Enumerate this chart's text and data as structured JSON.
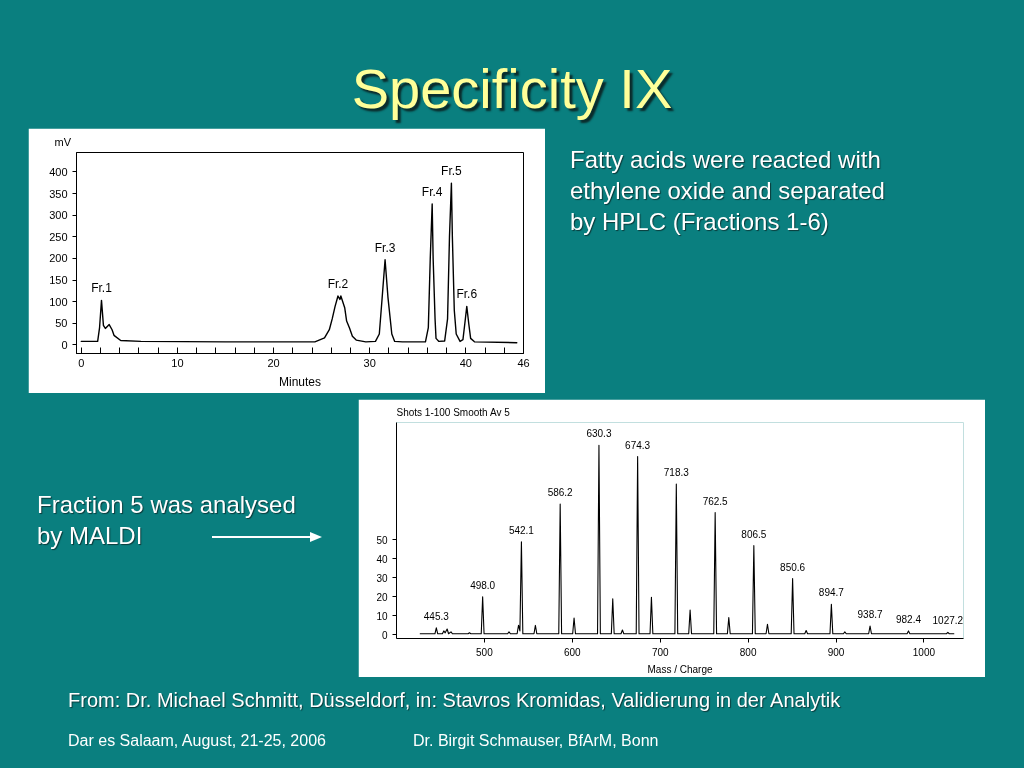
{
  "chart_data": [
    {
      "type": "line",
      "title": "Specificity IX",
      "xlabel": "Minutes",
      "ylabel": "mV",
      "x": [
        0,
        1.7,
        1.9,
        2.1,
        2.3,
        2.5,
        2.9,
        3.2,
        3.4,
        4.1,
        6.2,
        15,
        24.3,
        25.3,
        25.8,
        26.1,
        26.4,
        26.7,
        26.9,
        27.0,
        27.4,
        27.6,
        27.9,
        28.2,
        28.6,
        29.6,
        30.6,
        31.0,
        31.3,
        31.6,
        31.9,
        32.3,
        32.6,
        33.4,
        35.8,
        36.1,
        36.3,
        36.5,
        36.6,
        36.8,
        36.9,
        37.2,
        37.8,
        38.1,
        38.3,
        38.5,
        38.6,
        38.8,
        39.0,
        39.4,
        39.7,
        39.9,
        40.1,
        40.3,
        40.5,
        40.9,
        45.3
      ],
      "series": [
        {
          "color": "#000000",
          "values": [
            8,
            8,
            40,
            103,
            45,
            38,
            47,
            35,
            22,
            10,
            8,
            7,
            7,
            16,
            35,
            60,
            89,
            113,
            105,
            113,
            86,
            55,
            39,
            20,
            11,
            7,
            8,
            25,
            110,
            197,
            110,
            25,
            8,
            7,
            7,
            40,
            200,
            326,
            200,
            60,
            15,
            8,
            9,
            60,
            250,
            374,
            250,
            80,
            25,
            8,
            12,
            50,
            89,
            50,
            15,
            7,
            5
          ]
        }
      ],
      "xlim": [
        -0.5,
        46
      ],
      "ylim": [
        -20,
        445
      ],
      "xticks": [
        0,
        {
          "value": 2,
          "label": null
        },
        {
          "value": 4,
          "label": null
        },
        {
          "value": 6,
          "label": null
        },
        {
          "value": 8,
          "label": null
        },
        10,
        {
          "value": 12,
          "label": null
        },
        {
          "value": 14,
          "label": null
        },
        {
          "value": 16,
          "label": null
        },
        {
          "value": 18,
          "label": null
        },
        20,
        {
          "value": 22,
          "label": null
        },
        {
          "value": 24,
          "label": null
        },
        {
          "value": 26,
          "label": null
        },
        {
          "value": 28,
          "label": null
        },
        30,
        {
          "value": 32,
          "label": null
        },
        {
          "value": 34,
          "label": null
        },
        {
          "value": 36,
          "label": null
        },
        {
          "value": 38,
          "label": null
        },
        40,
        {
          "value": 42,
          "label": null
        },
        {
          "value": 44,
          "label": null
        },
        46
      ],
      "yticks": [
        0,
        50,
        100,
        150,
        200,
        250,
        300,
        350,
        400
      ],
      "annotations": [
        "Fatty acids were reacted with ethylene oxide and separated by HPLC (Fractions 1-6)",
        {
          "text": "Fr.1",
          "x": 2.1,
          "y": 103
        },
        {
          "text": "Fr.2",
          "x": 26.7,
          "y": 113
        },
        {
          "text": "Fr.3",
          "x": 31.6,
          "y": 197
        },
        {
          "text": "Fr.4",
          "x": 36.5,
          "y": 326
        },
        {
          "text": "Fr.5",
          "x": 38.5,
          "y": 374
        },
        {
          "text": "Fr.6",
          "x": 40.1,
          "y": 89
        }
      ]
    },
    {
      "type": "line",
      "title": "Shots 1-100 Smooth Av 5",
      "xlabel": "Mass / Charge",
      "x": [
        427,
        443.7,
        445.3,
        446.9,
        452.2,
        453.8,
        455.4,
        457.6,
        459.2,
        462,
        463.6,
        481.4,
        483,
        484.6,
        496.4,
        498,
        499.6,
        526.4,
        528,
        529.6,
        537.2,
        538.8,
        540.4,
        542.1,
        543.7,
        556.4,
        558,
        559.6,
        584.6,
        586.2,
        587.8,
        600.4,
        602,
        603.6,
        628.7,
        630.3,
        631.9,
        644.4,
        646,
        647.6,
        655.4,
        657,
        658.6,
        672.7,
        674.3,
        675.9,
        688.4,
        690,
        691.6,
        716.7,
        718.3,
        719.9,
        732.4,
        734,
        735.6,
        760.9,
        762.5,
        764.1,
        776.4,
        778,
        779.6,
        804.9,
        806.5,
        808.1,
        820.4,
        822,
        823.6,
        849,
        850.6,
        852.2,
        864.4,
        866,
        867.6,
        893.1,
        894.7,
        896.3,
        908.4,
        910,
        911.6,
        937.1,
        938.7,
        940.3,
        980.8,
        982.4,
        984,
        1025.6,
        1027.2,
        1028.8,
        1034
      ],
      "series": [
        {
          "color": "#000000",
          "values": [
            0.5,
            0.5,
            3.6,
            0.5,
            0.5,
            2,
            1,
            3,
            0.5,
            1.5,
            0.5,
            0.5,
            1,
            0.5,
            0.5,
            20,
            0.5,
            0.5,
            1.5,
            0.5,
            0.5,
            5,
            2,
            49,
            0.5,
            0.5,
            4.9,
            0.5,
            0.5,
            69,
            0.5,
            0.5,
            8.8,
            0.5,
            0.5,
            100,
            0.5,
            0.5,
            19,
            0.5,
            0.5,
            2.5,
            0.5,
            0.5,
            94,
            0.5,
            0.5,
            19.7,
            0.5,
            0.5,
            79.5,
            0.5,
            0.5,
            13,
            0.5,
            0.5,
            64.5,
            0.5,
            0.5,
            9,
            0.5,
            0.5,
            47,
            0.5,
            0.5,
            5.5,
            0.5,
            0.5,
            29.6,
            0.5,
            0.5,
            2.2,
            0.5,
            0.5,
            16,
            0.5,
            0.5,
            1.5,
            0.5,
            0.5,
            4.6,
            0.5,
            0.5,
            2,
            0.5,
            0.5,
            1.2,
            0.5,
            0.5
          ]
        }
      ],
      "xlim": [
        400,
        1045
      ],
      "ylim": [
        -2,
        112
      ],
      "xticks": [
        500,
        600,
        700,
        800,
        900,
        1000
      ],
      "yticks": [
        0,
        10,
        20,
        30,
        40,
        50
      ],
      "annotations": [
        "Fraction 5 was analysed by MALDI",
        "From: Dr. Michael Schmitt, Düsseldorf, in: Stavros Kromidas, Validierung in der Analytik",
        "Dar es Salaam, August, 21-25, 2006",
        "Dr. Birgit Schmauser, BfArM, Bonn",
        {
          "text": "445.3",
          "x": 445.3,
          "y": 3.6
        },
        {
          "text": "498.0",
          "x": 498.0,
          "y": 20
        },
        {
          "text": "542.1",
          "x": 542.1,
          "y": 49
        },
        {
          "text": "586.2",
          "x": 586.2,
          "y": 69
        },
        {
          "text": "630.3",
          "x": 630.3,
          "y": 100
        },
        {
          "text": "674.3",
          "x": 674.3,
          "y": 94
        },
        {
          "text": "718.3",
          "x": 718.3,
          "y": 79.5
        },
        {
          "text": "762.5",
          "x": 762.5,
          "y": 64.5
        },
        {
          "text": "806.5",
          "x": 806.5,
          "y": 47
        },
        {
          "text": "850.6",
          "x": 850.6,
          "y": 29.6
        },
        {
          "text": "894.7",
          "x": 894.7,
          "y": 16
        },
        {
          "text": "938.7",
          "x": 938.7,
          "y": 4.6
        },
        {
          "text": "982.4",
          "x": 982.4,
          "y": 2
        },
        {
          "text": "1027.2",
          "x": 1027.2,
          "y": 1.2
        }
      ]
    }
  ]
}
